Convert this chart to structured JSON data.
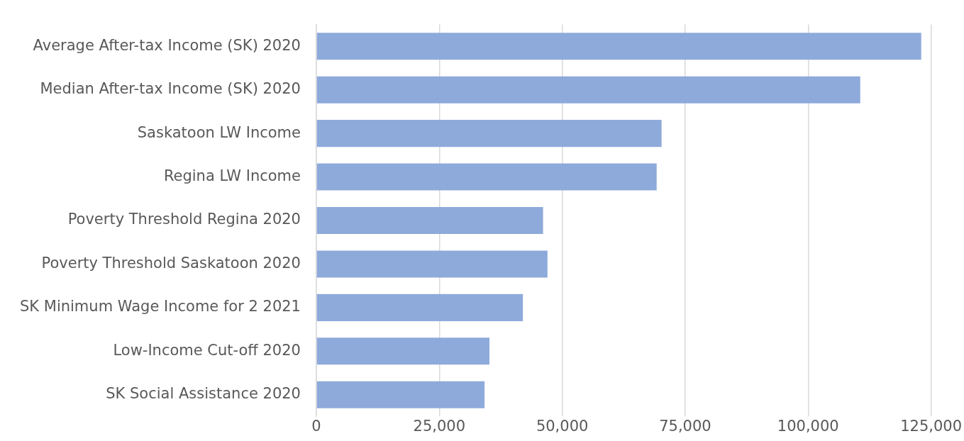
{
  "chart_data": {
    "type": "bar",
    "orientation": "horizontal",
    "categories": [
      "Average After-tax Income (SK) 2020",
      "Median After-tax Income (SK) 2020",
      "Saskatoon LW Income",
      "Regina LW Income",
      "Poverty Threshold Regina 2020",
      "Poverty Threshold Saskatoon 2020",
      "SK Minimum Wage Income for 2 2021",
      "Low-Income Cut-off 2020",
      "SK Social Assistance 2020"
    ],
    "values": [
      123000,
      110600,
      70200,
      69200,
      46100,
      47000,
      42000,
      35200,
      34200
    ],
    "color": "#8eaadb",
    "xlim": [
      0,
      125000
    ],
    "xticks": [
      {
        "value": 0,
        "label": "0"
      },
      {
        "value": 25000,
        "label": "25,000"
      },
      {
        "value": 50000,
        "label": "50,000"
      },
      {
        "value": 75000,
        "label": "75,000"
      },
      {
        "value": 100000,
        "label": "100,000"
      },
      {
        "value": 125000,
        "label": "125,000"
      }
    ],
    "grid": "x",
    "legend": false
  }
}
